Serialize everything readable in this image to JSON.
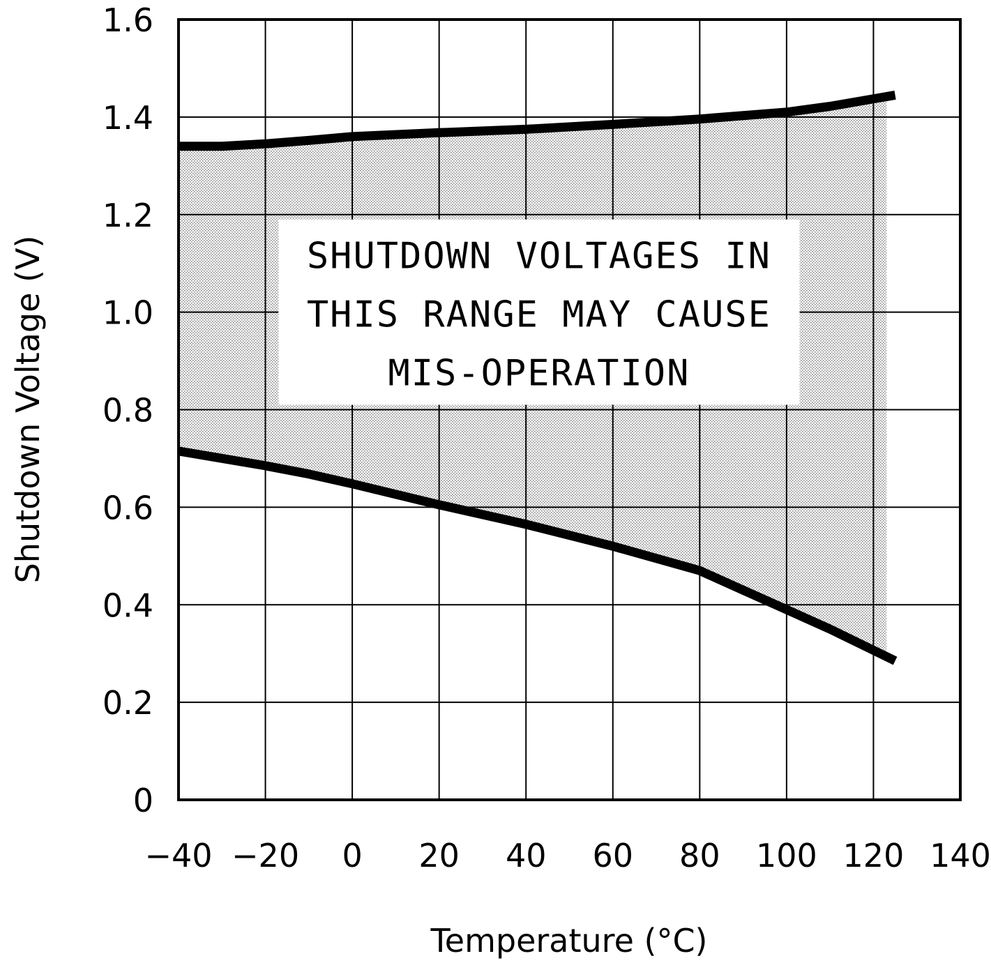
{
  "chart_data": {
    "type": "line",
    "xlabel": "Temperature (°C)",
    "ylabel": "Shutdown Voltage (V)",
    "xlim": [
      -40,
      140
    ],
    "ylim": [
      0,
      1.6
    ],
    "xticks": [
      -40,
      -20,
      0,
      20,
      40,
      60,
      80,
      100,
      120,
      140
    ],
    "xtick_labels": [
      "−40",
      "−20",
      "0",
      "20",
      "40",
      "60",
      "80",
      "100",
      "120",
      "140"
    ],
    "yticks": [
      0,
      0.2,
      0.4,
      0.6,
      0.8,
      1.0,
      1.2,
      1.4,
      1.6
    ],
    "ytick_labels": [
      "0",
      "0.2",
      "0.4",
      "0.6",
      "0.8",
      "1.0",
      "1.2",
      "1.4",
      "1.6"
    ],
    "grid": true,
    "legend": "none",
    "series": [
      {
        "x": [
          -40,
          -30,
          -20,
          -10,
          0,
          20,
          40,
          60,
          80,
          100,
          110,
          125
        ],
        "y": [
          1.34,
          1.34,
          1.345,
          1.352,
          1.36,
          1.368,
          1.375,
          1.385,
          1.396,
          1.41,
          1.422,
          1.445
        ]
      },
      {
        "x": [
          -40,
          -20,
          -10,
          0,
          20,
          40,
          60,
          80,
          90,
          100,
          110,
          125
        ],
        "y": [
          0.715,
          0.685,
          0.668,
          0.648,
          0.605,
          0.565,
          0.52,
          0.47,
          0.43,
          0.39,
          0.35,
          0.285
        ]
      }
    ],
    "shaded_region": {
      "x_start": -40,
      "x_end": 123,
      "between": "upper and lower curves",
      "pattern": "stipple"
    },
    "annotation": {
      "lines": [
        "SHUTDOWN VOLTAGES IN",
        "THIS RANGE MAY CAUSE",
        "MIS-OPERATION"
      ]
    },
    "colors": {
      "line": "#000000",
      "grid": "#000000",
      "shade": "#9a9a9a",
      "background": "#ffffff"
    }
  }
}
